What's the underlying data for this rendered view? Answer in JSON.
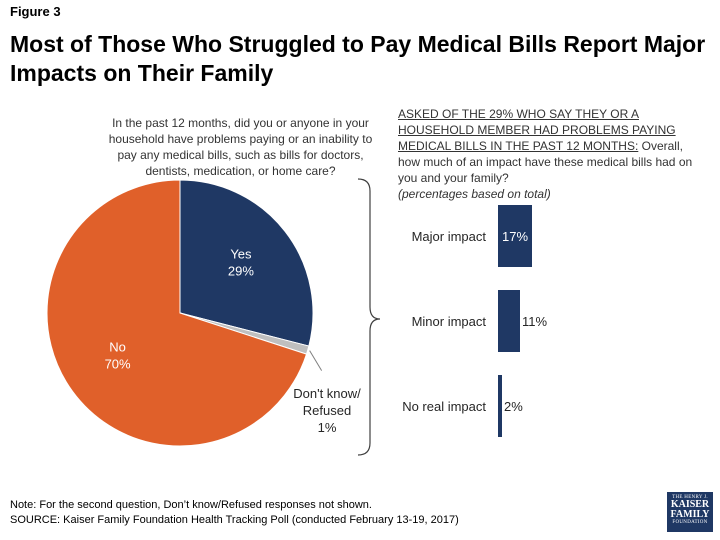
{
  "figure_label": "Figure 3",
  "title": "Most of Those Who Struggled to Pay Medical Bills Report Major Impacts on Their Family",
  "question1": "In the past 12 months, did you or anyone in your household have problems paying or an inability to pay any medical bills, such as bills for doctors, dentists, medication, or home care?",
  "question2": {
    "underlined": "ASKED OF THE 29% WHO SAY THEY OR A HOUSEHOLD MEMBER HAD PROBLEMS PAYING MEDICAL BILLS IN THE PAST 12 MONTHS:",
    "text": " Overall, how much of an impact have these medical bills had on you and your family?",
    "note": "(percentages based on total)"
  },
  "note": "Note: For the second question, Don’t know/Refused responses not shown.",
  "source": "SOURCE: Kaiser Family Foundation Health Tracking Poll (conducted February 13-19, 2017)",
  "logo": {
    "line1": "THE HENRY J.",
    "line2": "KAISER",
    "line3": "FAMILY",
    "line4": "FOUNDATION"
  },
  "colors": {
    "navy": "#1f3864",
    "orange": "#e0602a",
    "gray": "#bfbfbf"
  },
  "chart_data": [
    {
      "type": "pie",
      "slices": [
        {
          "label": "Yes",
          "value": 29,
          "display": "29%",
          "color": "#1f3864"
        },
        {
          "label": "Don't know/ Refused",
          "value": 1,
          "display": "1%",
          "color": "#bfbfbf"
        },
        {
          "label": "No",
          "value": 70,
          "display": "70%",
          "color": "#e0602a"
        }
      ]
    },
    {
      "type": "bar",
      "orientation": "horizontal",
      "categories": [
        "Major impact",
        "Minor impact",
        "No real impact"
      ],
      "values": [
        17,
        11,
        2
      ],
      "labels": [
        "17%",
        "11%",
        "2%"
      ],
      "color": "#1f3864"
    }
  ]
}
